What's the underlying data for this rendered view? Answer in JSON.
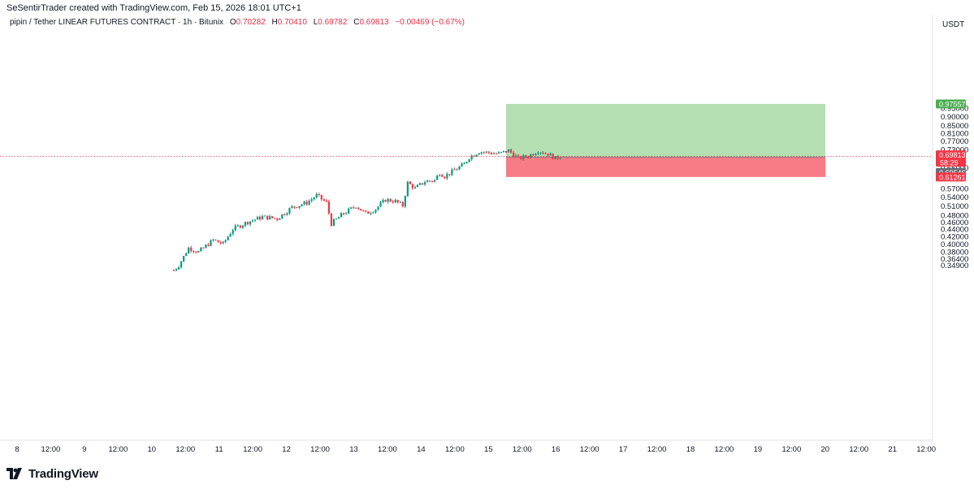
{
  "header": {
    "creator": "SeSentirTrader created with TradingView.com, Feb 15, 2026 18:01 UTC+1",
    "symbol": "pipin / Tether LINEAR FUTURES CONTRACT · 1h · Bitunix",
    "ohlc": {
      "open_label": "O",
      "open": "0.70282",
      "high_label": "H",
      "high": "0.70410",
      "low_label": "L",
      "low": "0.69782",
      "close_label": "C",
      "close": "0.69813",
      "change": "−0.00469 (−0.67%)"
    },
    "currency": "USDT"
  },
  "brand": {
    "name": "TradingView",
    "logo_icon": "tradingview-logo-icon"
  },
  "chart_data": {
    "type": "candlestick",
    "x_axis": {
      "ticks": [
        "8",
        "12:00",
        "9",
        "12:00",
        "10",
        "12:00",
        "11",
        "12:00",
        "12",
        "12:00",
        "13",
        "12:00",
        "14",
        "12:00",
        "15",
        "12:00",
        "16",
        "12:00",
        "17",
        "12:00",
        "18",
        "12:00",
        "19",
        "12:00",
        "20",
        "12:00",
        "21",
        "12:00"
      ]
    },
    "y_axis": {
      "scale": "log",
      "range": [
        0.33,
        1.0
      ],
      "ticks": [
        "0.95000",
        "0.90000",
        "0.85000",
        "0.81000",
        "0.77000",
        "0.73000",
        "0.65000",
        "0.57000",
        "0.54000",
        "0.51000",
        "0.48000",
        "0.46000",
        "0.44000",
        "0.42000",
        "0.40000",
        "0.38000",
        "0.36400",
        "0.34900"
      ]
    },
    "price_tags": [
      {
        "label": "0.97557",
        "color": "#4caf50"
      },
      {
        "label": "0.69813",
        "sub": "58:29",
        "color": "#f23645"
      },
      {
        "label": "0.69546",
        "color": "#6a6d78"
      },
      {
        "label": "0.61261",
        "color": "#f23645"
      }
    ],
    "current_price": 0.69813,
    "position": {
      "type": "long",
      "entry": 0.69546,
      "target": 0.97557,
      "stop": 0.61261,
      "profit_color": "#b3dfb3",
      "loss_color": "#f77c86"
    },
    "anchors": [
      [
        0,
        0.338
      ],
      [
        2,
        0.349
      ],
      [
        6,
        0.39
      ],
      [
        10,
        0.38
      ],
      [
        16,
        0.41
      ],
      [
        20,
        0.4
      ],
      [
        24,
        0.44
      ],
      [
        30,
        0.46
      ],
      [
        36,
        0.475
      ],
      [
        42,
        0.47
      ],
      [
        48,
        0.505
      ],
      [
        54,
        0.52
      ],
      [
        58,
        0.545
      ],
      [
        62,
        0.52
      ],
      [
        64,
        0.455
      ],
      [
        68,
        0.48
      ],
      [
        74,
        0.51
      ],
      [
        78,
        0.485
      ],
      [
        82,
        0.5
      ],
      [
        86,
        0.53
      ],
      [
        90,
        0.525
      ],
      [
        93,
        0.51
      ],
      [
        95,
        0.59
      ],
      [
        98,
        0.57
      ],
      [
        102,
        0.595
      ],
      [
        106,
        0.6
      ],
      [
        108,
        0.63
      ],
      [
        110,
        0.615
      ],
      [
        114,
        0.64
      ],
      [
        118,
        0.665
      ],
      [
        120,
        0.695
      ],
      [
        124,
        0.72
      ],
      [
        128,
        0.715
      ],
      [
        132,
        0.71
      ],
      [
        136,
        0.725
      ],
      [
        140,
        0.69
      ],
      [
        144,
        0.7
      ],
      [
        148,
        0.725
      ],
      [
        152,
        0.71
      ],
      [
        155,
        0.69
      ],
      [
        157,
        0.698
      ]
    ]
  }
}
